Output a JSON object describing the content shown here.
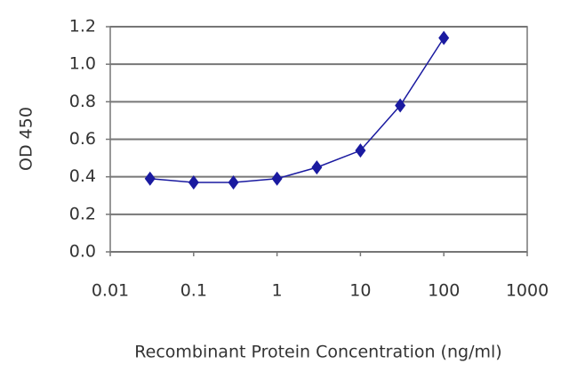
{
  "chart_data": {
    "type": "line",
    "x_label": "Recombinant Protein Concentration (ng/ml)",
    "y_label": "OD 450",
    "x": [
      0.03,
      0.1,
      0.3,
      1,
      3,
      10,
      30,
      100
    ],
    "series": [
      {
        "color": "#1a1aa0",
        "values": [
          0.39,
          0.37,
          0.37,
          0.39,
          0.45,
          0.54,
          0.78,
          1.14
        ]
      }
    ],
    "xscale": "log",
    "xlim": [
      0.01,
      1000
    ],
    "xticks": [
      0.01,
      0.1,
      1,
      10,
      100,
      1000
    ],
    "ylim": [
      0,
      1.2
    ],
    "yticks": [
      {
        "value": 0,
        "label": "0.0"
      },
      0.2,
      0.4,
      0.6,
      0.8,
      {
        "value": 1,
        "label": "1.0"
      },
      1.2
    ],
    "grid": true
  }
}
